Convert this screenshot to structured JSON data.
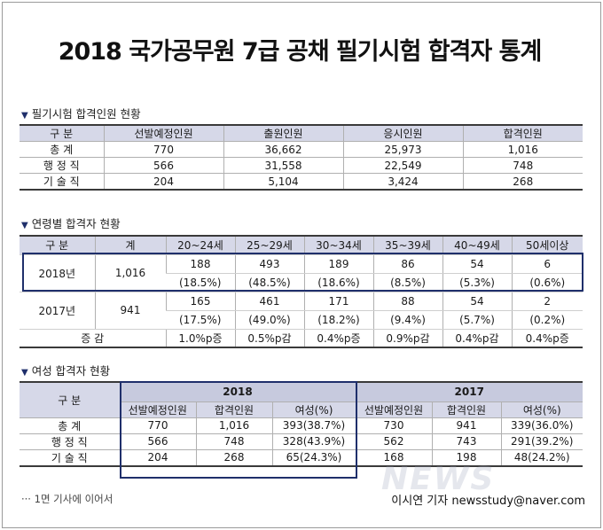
{
  "title": "2018 국가공무원 7급 공채 필기시험 합격자 통계",
  "section1": {
    "heading": "필기시험 합격인원 현황",
    "headers": [
      "구 분",
      "선발예정인원",
      "출원인원",
      "응시인원",
      "합격인원"
    ],
    "rows": [
      [
        "총 계",
        "770",
        "36,662",
        "25,973",
        "1,016"
      ],
      [
        "행 정 직",
        "566",
        "31,558",
        "22,549",
        "748"
      ],
      [
        "기 술 직",
        "204",
        "5,104",
        "3,424",
        "268"
      ]
    ]
  },
  "section2": {
    "heading": "연령별 합격자 현황",
    "headers": [
      "구 분",
      "계",
      "20~24세",
      "25~29세",
      "30~34세",
      "35~39세",
      "40~49세",
      "50세이상"
    ],
    "y2018": {
      "label": "2018년",
      "total": "1,016",
      "counts": [
        "188",
        "493",
        "189",
        "86",
        "54",
        "6"
      ],
      "pcts": [
        "(18.5%)",
        "(48.5%)",
        "(18.6%)",
        "(8.5%)",
        "(5.3%)",
        "(0.6%)"
      ]
    },
    "y2017": {
      "label": "2017년",
      "total": "941",
      "counts": [
        "165",
        "461",
        "171",
        "88",
        "54",
        "2"
      ],
      "pcts": [
        "(17.5%)",
        "(49.0%)",
        "(18.2%)",
        "(9.4%)",
        "(5.7%)",
        "(0.2%)"
      ]
    },
    "change": {
      "label": "증 감",
      "values": [
        "1.0%p증",
        "0.5%p감",
        "0.4%p증",
        "0.9%p감",
        "0.4%p감",
        "0.4%p증"
      ]
    }
  },
  "section3": {
    "heading": "여성 합격자 현황",
    "gubun": "구 분",
    "year_a": "2018",
    "year_b": "2017",
    "subheaders": [
      "선발예정인원",
      "합격인원",
      "여성(%)",
      "선발예정인원",
      "합격인원",
      "여성(%)"
    ],
    "rows": [
      [
        "총 계",
        "770",
        "1,016",
        "393(38.7%)",
        "730",
        "941",
        "339(36.0%)"
      ],
      [
        "행 정 직",
        "566",
        "748",
        "328(43.9%)",
        "562",
        "743",
        "291(39.2%)"
      ],
      [
        "기 술 직",
        "204",
        "268",
        "65(24.3%)",
        "168",
        "198",
        "48(24.2%)"
      ]
    ]
  },
  "footnote": "··· 1면 기사에 이어서",
  "byline": "이시연 기자 newsstudy@naver.com",
  "watermark": "NEWS",
  "colors": {
    "header_bg": "#d6d8e8",
    "highlight_border": "#1f2f6b"
  }
}
